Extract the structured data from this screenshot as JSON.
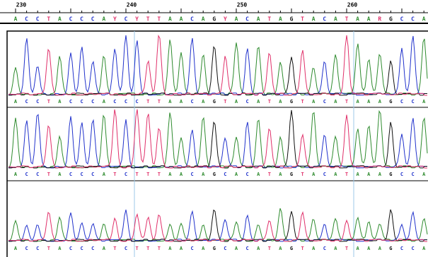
{
  "ruler": {
    "labels": [
      "230",
      "240",
      "250",
      "260"
    ]
  },
  "consensus": "ACCTACCCAYCYTTAACAGYACATAGTACATAARGCCA",
  "base_colors": {
    "A": "#2e8b2e",
    "C": "#2233cc",
    "G": "#111111",
    "T": "#e0306a"
  },
  "tracks": [
    {
      "sequence": "ACCTACCCACCCTTAACAGTACATAGTACATAAAGCCA"
    },
    {
      "sequence": "ACCTACCCATCTTTAACAGCACATAGTACATAAAGCCA"
    },
    {
      "sequence": "ACCTACCCATCTTTAACAGCACATAGTACATAAAGCCA"
    }
  ]
}
